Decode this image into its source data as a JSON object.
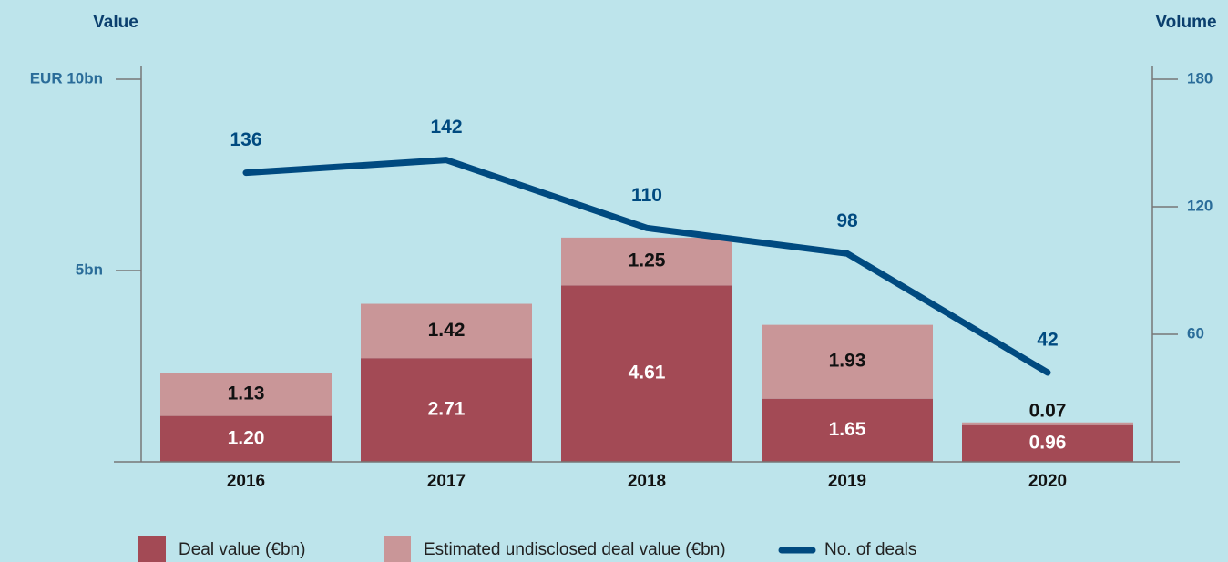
{
  "chart_data": {
    "type": "bar",
    "stacked": true,
    "y_label": "Value",
    "y2_label": "Volume",
    "categories": [
      "2016",
      "2017",
      "2018",
      "2019",
      "2020"
    ],
    "series": [
      {
        "name": "Deal value (€bn)",
        "color": "#a34a55",
        "values": [
          1.2,
          2.71,
          4.61,
          1.65,
          0.96
        ],
        "value_labels": [
          "1.20",
          "2.71",
          "4.61",
          "1.65",
          "0.96"
        ]
      },
      {
        "name": "Estimated undisclosed deal value (€bn)",
        "color": "#c99698",
        "values": [
          1.13,
          1.42,
          1.25,
          1.93,
          0.07
        ]
      },
      {
        "name": "No. of deals",
        "color": "#004a80",
        "type": "line",
        "axis": "y2",
        "values": [
          136,
          142,
          110,
          98,
          42
        ]
      }
    ],
    "ylim": [
      0,
      10
    ],
    "yticks": [
      {
        "value": 5,
        "label": "5bn"
      },
      {
        "value": 10,
        "label": "EUR 10bn"
      }
    ],
    "y2lim": [
      0,
      180
    ],
    "y2ticks": [
      60,
      120,
      180
    ],
    "legend": "bottom"
  }
}
